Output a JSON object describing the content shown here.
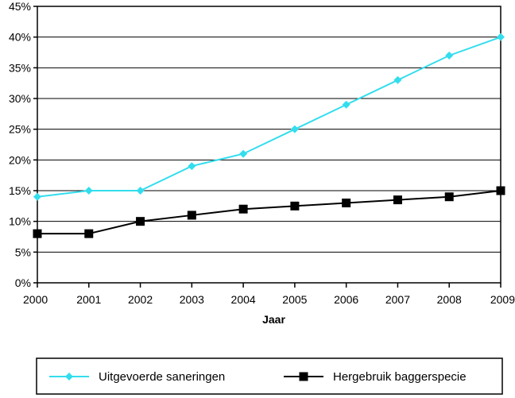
{
  "chart_data": {
    "type": "line",
    "xlabel": "Jaar",
    "ylabel": "",
    "x": [
      2000,
      2001,
      2002,
      2003,
      2004,
      2005,
      2006,
      2007,
      2008,
      2009
    ],
    "ylim": [
      0,
      45
    ],
    "yticks": [
      0,
      5,
      10,
      15,
      20,
      25,
      30,
      35,
      40,
      45
    ],
    "ytick_labels": [
      "0%",
      "5%",
      "10%",
      "15%",
      "20%",
      "25%",
      "30%",
      "35%",
      "40%",
      "45%"
    ],
    "xtick_labels": [
      "2000",
      "2001",
      "2002",
      "2003",
      "2004",
      "2005",
      "2006",
      "2007",
      "2008",
      "2009"
    ],
    "grid": true,
    "legend_position": "bottom",
    "series": [
      {
        "name": "Uitgevoerde saneringen",
        "color": "#33ddee",
        "marker": "diamond",
        "values": [
          14,
          15,
          15,
          19,
          21,
          25,
          29,
          33,
          37,
          40
        ]
      },
      {
        "name": "Hergebruik baggerspecie",
        "color": "#000000",
        "marker": "square",
        "values": [
          8,
          8,
          10,
          11,
          12,
          12.5,
          13,
          13.5,
          14,
          15
        ]
      }
    ]
  }
}
